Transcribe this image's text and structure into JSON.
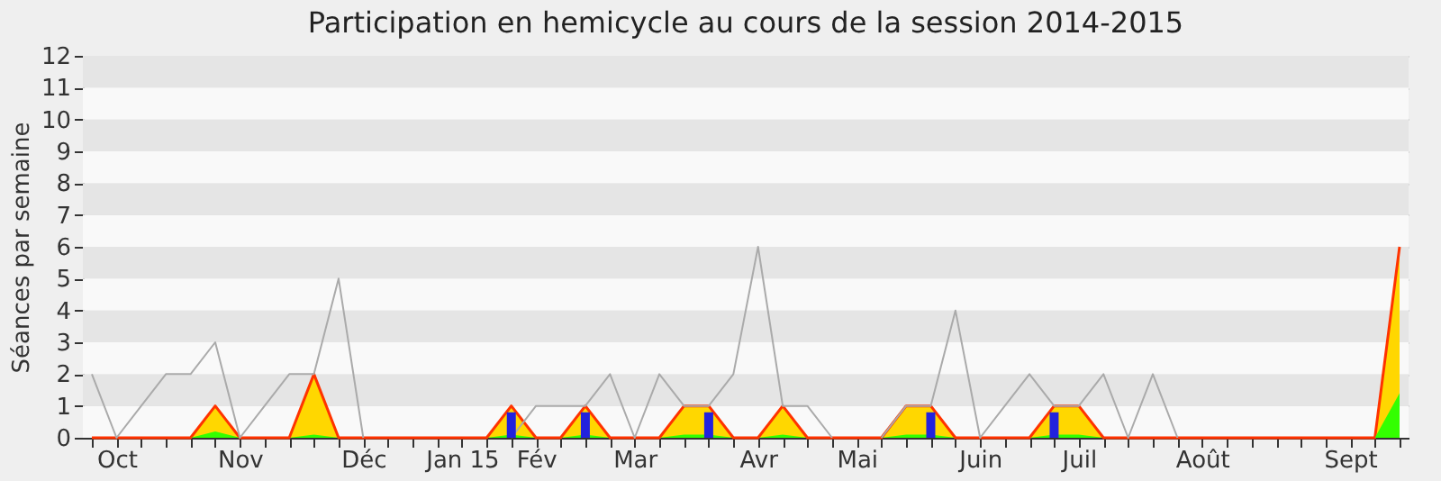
{
  "chart_data": {
    "type": "area",
    "title": "Participation en hemicycle au cours de la session 2014-2015",
    "ylabel": "Séances par semaine",
    "categories": [
      null,
      "Oct",
      null,
      null,
      null,
      null,
      "Nov",
      null,
      null,
      null,
      null,
      "Déc",
      null,
      null,
      null,
      "Jan 15",
      null,
      null,
      "Fév",
      null,
      null,
      null,
      "Mar",
      null,
      null,
      null,
      null,
      "Avr",
      null,
      null,
      null,
      "Mai",
      null,
      null,
      null,
      null,
      "Juin",
      null,
      null,
      null,
      "Juil",
      null,
      null,
      null,
      null,
      "Août",
      null,
      null,
      null,
      null,
      null,
      "Sept",
      null,
      null
    ],
    "series": [
      {
        "color": "#ffd700",
        "values": [
          0,
          0,
          0,
          0,
          0,
          1,
          0,
          0,
          0,
          2,
          0,
          0,
          0,
          0,
          0,
          0,
          0,
          1,
          0,
          0,
          1,
          0,
          0,
          0,
          1,
          1,
          0,
          0,
          1,
          0,
          0,
          0,
          0,
          1,
          1,
          0,
          0,
          0,
          0,
          1,
          1,
          0,
          0,
          0,
          0,
          0,
          0,
          0,
          0,
          0,
          0,
          0,
          0,
          6
        ]
      },
      {
        "type": "area",
        "color": "#33ff00",
        "values": [
          0,
          0,
          0,
          0,
          0,
          0.2,
          0,
          0,
          0,
          0.1,
          0,
          0,
          0,
          0,
          0,
          0,
          0,
          0.1,
          0,
          0,
          0.1,
          0,
          0,
          0,
          0.1,
          0.1,
          0,
          0,
          0.1,
          0,
          0,
          0,
          0,
          0.1,
          0.1,
          0,
          0,
          0,
          0,
          0.1,
          0.1,
          0,
          0,
          0,
          0,
          0,
          0,
          0,
          0,
          0,
          0,
          0,
          0,
          1.4
        ]
      },
      {
        "type": "line",
        "color": "#aaaaaa",
        "values": [
          2,
          0,
          1,
          2,
          2,
          3,
          0,
          1,
          2,
          2,
          5,
          0,
          null,
          null,
          null,
          null,
          null,
          0,
          1,
          1,
          1,
          2,
          0,
          2,
          1,
          1,
          2,
          6,
          1,
          1,
          0,
          null,
          0,
          1,
          1,
          4,
          0,
          1,
          2,
          1,
          1,
          2,
          0,
          2,
          0,
          null,
          null,
          null,
          null,
          null,
          null,
          null,
          null,
          null
        ]
      },
      {
        "type": "bar",
        "color": "#2222dd",
        "values": [
          null,
          null,
          null,
          null,
          null,
          null,
          null,
          null,
          null,
          null,
          null,
          null,
          null,
          null,
          null,
          null,
          null,
          0.8,
          null,
          null,
          0.8,
          null,
          null,
          null,
          null,
          0.8,
          null,
          null,
          null,
          null,
          null,
          null,
          null,
          null,
          0.8,
          null,
          null,
          null,
          null,
          0.8,
          null,
          null,
          null,
          null,
          null,
          null,
          null,
          null,
          null,
          null,
          null,
          null,
          null,
          null
        ]
      }
    ],
    "ylim": [
      0,
      12
    ],
    "yticks": [
      0,
      1,
      2,
      3,
      4,
      5,
      6,
      7,
      8,
      9,
      10,
      11,
      12
    ],
    "grid": "y"
  }
}
